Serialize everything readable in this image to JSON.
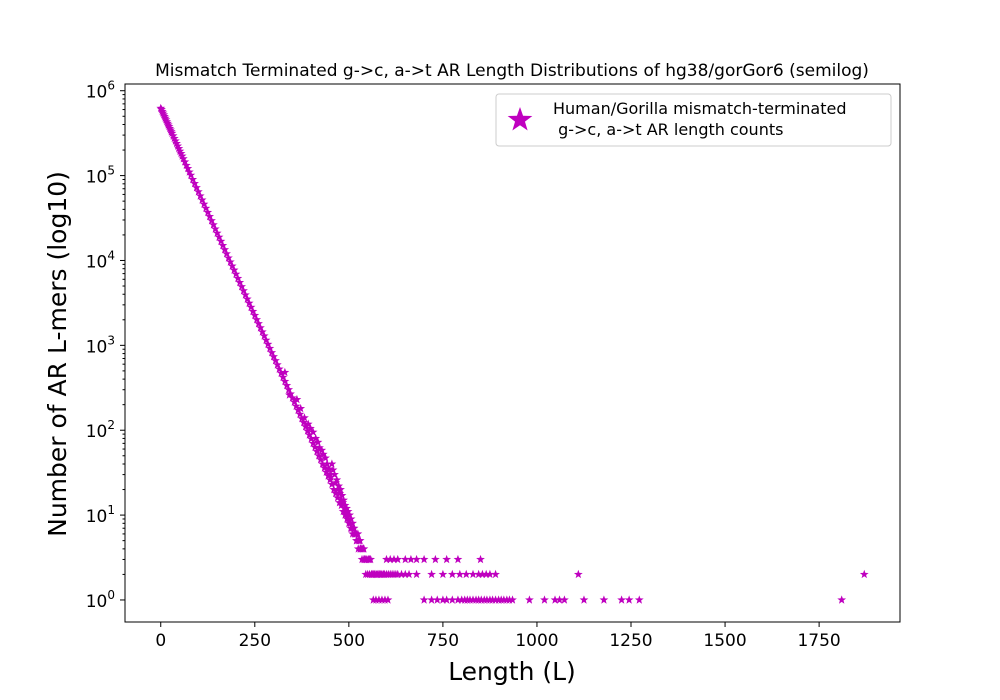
{
  "chart_data": {
    "type": "scatter",
    "title": "Mismatch Terminated g->c, a->t AR Length Distributions of hg38/gorGor6 (semilog)",
    "xlabel": "Length (L)",
    "ylabel": "Number of AR L-mers (log10)",
    "xlim": [
      -95,
      1965
    ],
    "ylim": [
      0.55,
      1200000
    ],
    "yscale": "log",
    "xticks": [
      0,
      250,
      500,
      750,
      1000,
      1250,
      1500,
      1750
    ],
    "yticks": [
      1,
      10,
      100,
      1000,
      10000,
      100000,
      1000000
    ],
    "ytick_exponents": [
      "0",
      "1",
      "2",
      "3",
      "4",
      "5",
      "6"
    ],
    "ytick_base": "10",
    "grid": false,
    "legend": {
      "placement": "top-right"
    },
    "marker": "star",
    "color": "#bf00bf",
    "series": [
      {
        "name": "Human/Gorilla mismatch-terminated\n g->c, a->t AR length counts",
        "legend_lines": [
          "Human/Gorilla mismatch-terminated",
          " g->c, a->t AR length counts"
        ],
        "points": [
          [
            0,
            620000
          ],
          [
            2,
            600000
          ],
          [
            4,
            570000
          ],
          [
            6,
            545000
          ],
          [
            8,
            520000
          ],
          [
            10,
            498000
          ],
          [
            12,
            475000
          ],
          [
            14,
            455000
          ],
          [
            16,
            432000
          ],
          [
            18,
            413000
          ],
          [
            20,
            395000
          ],
          [
            22,
            378000
          ],
          [
            24,
            360000
          ],
          [
            26,
            344000
          ],
          [
            28,
            329000
          ],
          [
            30,
            315000
          ],
          [
            33,
            294000
          ],
          [
            36,
            274000
          ],
          [
            39,
            256000
          ],
          [
            42,
            239000
          ],
          [
            45,
            223000
          ],
          [
            48,
            208000
          ],
          [
            51,
            194000
          ],
          [
            54,
            182000
          ],
          [
            57,
            170000
          ],
          [
            60,
            158000
          ],
          [
            64,
            145000
          ],
          [
            68,
            132000
          ],
          [
            72,
            121000
          ],
          [
            76,
            110000
          ],
          [
            80,
            101000
          ],
          [
            85,
            90000
          ],
          [
            90,
            80500
          ],
          [
            95,
            72000
          ],
          [
            100,
            64500
          ],
          [
            105,
            57700
          ],
          [
            110,
            51600
          ],
          [
            115,
            46100
          ],
          [
            120,
            41200
          ],
          [
            125,
            36800
          ],
          [
            130,
            32900
          ],
          [
            135,
            29400
          ],
          [
            140,
            26300
          ],
          [
            145,
            23500
          ],
          [
            150,
            21000
          ],
          [
            155,
            18800
          ],
          [
            160,
            16800
          ],
          [
            165,
            15000
          ],
          [
            170,
            13400
          ],
          [
            175,
            12000
          ],
          [
            180,
            10700
          ],
          [
            185,
            9600
          ],
          [
            190,
            8600
          ],
          [
            195,
            7700
          ],
          [
            200,
            6900
          ],
          [
            205,
            6150
          ],
          [
            210,
            5500
          ],
          [
            215,
            4920
          ],
          [
            220,
            4400
          ],
          [
            225,
            3930
          ],
          [
            230,
            3510
          ],
          [
            235,
            3140
          ],
          [
            240,
            2810
          ],
          [
            245,
            2510
          ],
          [
            250,
            2250
          ],
          [
            255,
            2010
          ],
          [
            260,
            1800
          ],
          [
            265,
            1610
          ],
          [
            270,
            1440
          ],
          [
            275,
            1290
          ],
          [
            280,
            1150
          ],
          [
            285,
            1030
          ],
          [
            290,
            920
          ],
          [
            295,
            820
          ],
          [
            300,
            735
          ],
          [
            305,
            660
          ],
          [
            310,
            590
          ],
          [
            315,
            525
          ],
          [
            320,
            470
          ],
          [
            325,
            420
          ],
          [
            330,
            376
          ],
          [
            335,
            336
          ],
          [
            340,
            300
          ],
          [
            345,
            268
          ],
          [
            350,
            240
          ],
          [
            355,
            215
          ],
          [
            360,
            192
          ],
          [
            365,
            172
          ],
          [
            370,
            154
          ],
          [
            375,
            137
          ],
          [
            380,
            123
          ],
          [
            385,
            110
          ],
          [
            390,
            98
          ],
          [
            395,
            88
          ],
          [
            400,
            79
          ],
          [
            405,
            70
          ],
          [
            410,
            63
          ],
          [
            415,
            56
          ],
          [
            420,
            50
          ],
          [
            425,
            45
          ],
          [
            430,
            40
          ],
          [
            435,
            36
          ],
          [
            440,
            32
          ],
          [
            445,
            29
          ],
          [
            450,
            26
          ],
          [
            455,
            23
          ],
          [
            460,
            20
          ],
          [
            465,
            18
          ],
          [
            470,
            16
          ],
          [
            475,
            14
          ],
          [
            480,
            13
          ],
          [
            485,
            11
          ],
          [
            490,
            10
          ],
          [
            495,
            9
          ],
          [
            500,
            8
          ],
          [
            505,
            7
          ],
          [
            510,
            6
          ],
          [
            515,
            6
          ],
          [
            520,
            5
          ],
          [
            525,
            4
          ],
          [
            530,
            4
          ],
          [
            535,
            3
          ],
          [
            540,
            3
          ],
          [
            545,
            2
          ],
          [
            550,
            2
          ],
          [
            555,
            2
          ],
          [
            560,
            2
          ],
          [
            565,
            1
          ],
          [
            572,
            1
          ],
          [
            580,
            1
          ],
          [
            588,
            1
          ],
          [
            596,
            1
          ],
          [
            604,
            1
          ],
          [
            330,
            480
          ],
          [
            342,
            260
          ],
          [
            362,
            230
          ],
          [
            372,
            180
          ],
          [
            382,
            140
          ],
          [
            392,
            118
          ],
          [
            398,
            105
          ],
          [
            405,
            95
          ],
          [
            412,
            80
          ],
          [
            418,
            72
          ],
          [
            422,
            62
          ],
          [
            428,
            58
          ],
          [
            432,
            52
          ],
          [
            438,
            47
          ],
          [
            442,
            40
          ],
          [
            447,
            35
          ],
          [
            450,
            30
          ],
          [
            452,
            28
          ],
          [
            455,
            40
          ],
          [
            458,
            34
          ],
          [
            462,
            30
          ],
          [
            465,
            24
          ],
          [
            468,
            26
          ],
          [
            470,
            20
          ],
          [
            473,
            22
          ],
          [
            476,
            18
          ],
          [
            478,
            20
          ],
          [
            480,
            15
          ],
          [
            482,
            17
          ],
          [
            484,
            14
          ],
          [
            486,
            15
          ],
          [
            488,
            12
          ],
          [
            490,
            13
          ],
          [
            492,
            11
          ],
          [
            494,
            12
          ],
          [
            496,
            10
          ],
          [
            498,
            11
          ],
          [
            500,
            9
          ],
          [
            502,
            10
          ],
          [
            504,
            8
          ],
          [
            506,
            9
          ],
          [
            508,
            7
          ],
          [
            510,
            8
          ],
          [
            512,
            7
          ],
          [
            514,
            7
          ],
          [
            516,
            6
          ],
          [
            518,
            6
          ],
          [
            520,
            6
          ],
          [
            522,
            5
          ],
          [
            524,
            6
          ],
          [
            526,
            5
          ],
          [
            528,
            5
          ],
          [
            530,
            5
          ],
          [
            532,
            4
          ],
          [
            535,
            4
          ],
          [
            538,
            4
          ],
          [
            540,
            4
          ],
          [
            542,
            3
          ],
          [
            545,
            3
          ],
          [
            548,
            3
          ],
          [
            552,
            3
          ],
          [
            555,
            3
          ],
          [
            558,
            3
          ],
          [
            562,
            2
          ],
          [
            565,
            2
          ],
          [
            568,
            2
          ],
          [
            572,
            2
          ],
          [
            575,
            2
          ],
          [
            578,
            2
          ],
          [
            582,
            2
          ],
          [
            585,
            2
          ],
          [
            588,
            2
          ],
          [
            592,
            2
          ],
          [
            595,
            2
          ],
          [
            600,
            2
          ],
          [
            605,
            2
          ],
          [
            610,
            2
          ],
          [
            615,
            2
          ],
          [
            620,
            2
          ],
          [
            625,
            2
          ],
          [
            630,
            2
          ],
          [
            640,
            2
          ],
          [
            650,
            2
          ],
          [
            660,
            2
          ],
          [
            680,
            2
          ],
          [
            720,
            2
          ],
          [
            750,
            2
          ],
          [
            775,
            2
          ],
          [
            795,
            2
          ],
          [
            812,
            2
          ],
          [
            830,
            2
          ],
          [
            845,
            2
          ],
          [
            855,
            2
          ],
          [
            865,
            2
          ],
          [
            875,
            2
          ],
          [
            890,
            2
          ],
          [
            1110,
            2
          ],
          [
            1870,
            2
          ],
          [
            600,
            3
          ],
          [
            610,
            3
          ],
          [
            620,
            3
          ],
          [
            630,
            3
          ],
          [
            650,
            3
          ],
          [
            665,
            3
          ],
          [
            680,
            3
          ],
          [
            700,
            3
          ],
          [
            730,
            3
          ],
          [
            760,
            3
          ],
          [
            790,
            3
          ],
          [
            850,
            3
          ],
          [
            700,
            1
          ],
          [
            720,
            1
          ],
          [
            735,
            1
          ],
          [
            750,
            1
          ],
          [
            760,
            1
          ],
          [
            775,
            1
          ],
          [
            790,
            1
          ],
          [
            800,
            1
          ],
          [
            808,
            1
          ],
          [
            815,
            1
          ],
          [
            822,
            1
          ],
          [
            830,
            1
          ],
          [
            838,
            1
          ],
          [
            845,
            1
          ],
          [
            852,
            1
          ],
          [
            860,
            1
          ],
          [
            867,
            1
          ],
          [
            875,
            1
          ],
          [
            882,
            1
          ],
          [
            890,
            1
          ],
          [
            898,
            1
          ],
          [
            905,
            1
          ],
          [
            912,
            1
          ],
          [
            920,
            1
          ],
          [
            927,
            1
          ],
          [
            935,
            1
          ],
          [
            980,
            1
          ],
          [
            1020,
            1
          ],
          [
            1048,
            1
          ],
          [
            1060,
            1
          ],
          [
            1073,
            1
          ],
          [
            1125,
            1
          ],
          [
            1178,
            1
          ],
          [
            1225,
            1
          ],
          [
            1245,
            1
          ],
          [
            1272,
            1
          ],
          [
            1810,
            1
          ]
        ]
      }
    ]
  }
}
